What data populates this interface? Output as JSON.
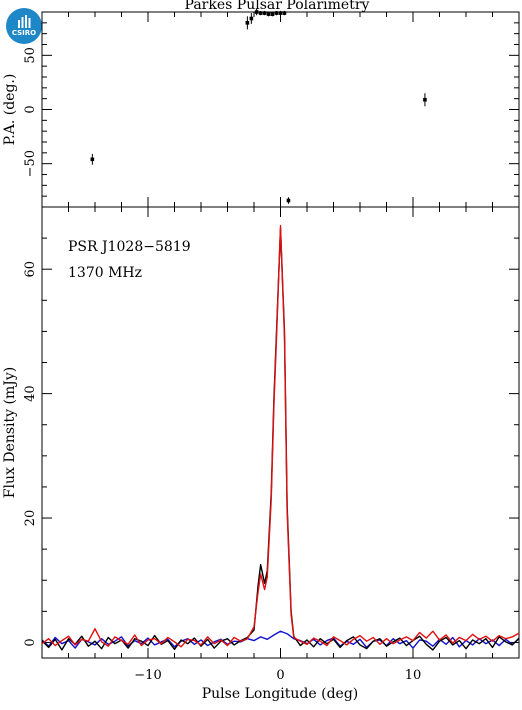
{
  "logo": {
    "text": "CSIRO"
  },
  "chart_data": [
    {
      "type": "scatter",
      "title": "Parkes Pulsar Polarimetry",
      "xlabel": "",
      "ylabel": "P.A. (deg.)",
      "xlim": [
        -18,
        18
      ],
      "ylim": [
        -90,
        90
      ],
      "xticks": [
        -10,
        0,
        10
      ],
      "yticks": [
        -50,
        0,
        50
      ],
      "series": [
        {
          "x": [
            -14.2,
            -2.5,
            -2.2,
            -1.8,
            -1.5,
            -1.2,
            -0.9,
            -0.6,
            -0.3,
            0.0,
            0.3,
            0.6,
            10.9
          ],
          "y": [
            -46,
            80,
            84,
            90,
            89,
            89,
            88,
            88,
            89,
            89,
            89,
            -84,
            9
          ],
          "yerr": [
            5,
            6,
            5,
            3,
            2,
            2,
            2,
            2,
            2,
            2,
            2,
            3,
            6
          ]
        }
      ]
    },
    {
      "type": "line",
      "title": "",
      "annotations": [
        "PSR J1028−5819",
        "1370 MHz"
      ],
      "xlabel": "Pulse Longitude (deg)",
      "ylabel": "Flux Density (mJy)",
      "xlim": [
        -18,
        18
      ],
      "ylim": [
        -2.5,
        70
      ],
      "xticks": [
        -10,
        0,
        10
      ],
      "yticks": [
        0,
        20,
        40,
        60
      ],
      "series": [
        {
          "color": "#000000",
          "x": [
            -18,
            -17.5,
            -17,
            -16.5,
            -16,
            -15.5,
            -15,
            -14.5,
            -14,
            -13.5,
            -13,
            -12.5,
            -12,
            -11.5,
            -11,
            -10.5,
            -10,
            -9.5,
            -9,
            -8.5,
            -8,
            -7.5,
            -7,
            -6.5,
            -6,
            -5.5,
            -5,
            -4.5,
            -4,
            -3.5,
            -3,
            -2.5,
            -2,
            -1.7,
            -1.5,
            -1.2,
            -1.0,
            -0.7,
            -0.5,
            -0.3,
            0.0,
            0.3,
            0.5,
            0.8,
            1.0,
            1.5,
            2,
            2.5,
            3,
            3.5,
            4,
            4.5,
            5,
            5.5,
            6,
            6.5,
            7,
            7.5,
            8,
            8.5,
            9,
            9.5,
            10,
            10.5,
            11,
            11.5,
            12,
            12.5,
            13,
            13.5,
            14,
            14.5,
            15,
            15.5,
            16,
            16.5,
            17,
            17.5,
            18
          ],
          "y": [
            0.3,
            -0.8,
            0.5,
            -1.2,
            0.6,
            -0.3,
            1.0,
            -0.6,
            0.2,
            -1.0,
            0.8,
            -0.2,
            0.4,
            -0.9,
            0.6,
            0.2,
            -0.5,
            1.1,
            -0.3,
            0.3,
            -1.1,
            0.4,
            -0.2,
            0.7,
            -0.6,
            0.5,
            -0.9,
            0.2,
            0.6,
            -0.4,
            0.3,
            0.8,
            2.0,
            9.0,
            12.5,
            9.5,
            11.5,
            24.0,
            39.0,
            50.0,
            66.5,
            50.0,
            22.0,
            5.0,
            1.0,
            -0.5,
            0.4,
            -0.7,
            0.6,
            -0.2,
            0.5,
            -0.8,
            0.3,
            0.9,
            -0.4,
            -1.0,
            0.2,
            0.6,
            -0.6,
            0.1,
            0.7,
            -0.5,
            0.3,
            1.0,
            -0.3,
            -1.2,
            0.2,
            0.8,
            -0.4,
            0.3,
            -1.0,
            0.4,
            -0.2,
            0.6,
            -0.8,
            0.9,
            0.1,
            -0.4,
            0.7
          ]
        },
        {
          "color": "#e01010",
          "x": [
            -18,
            -17.5,
            -17,
            -16.5,
            -16,
            -15.5,
            -15,
            -14.5,
            -14,
            -13.5,
            -13,
            -12.5,
            -12,
            -11.5,
            -11,
            -10.5,
            -10,
            -9.5,
            -9,
            -8.5,
            -8,
            -7.5,
            -7,
            -6.5,
            -6,
            -5.5,
            -5,
            -4.5,
            -4,
            -3.5,
            -3,
            -2.5,
            -2,
            -1.7,
            -1.5,
            -1.2,
            -1.0,
            -0.7,
            -0.5,
            -0.3,
            0.0,
            0.3,
            0.5,
            0.8,
            1.0,
            1.5,
            2,
            2.5,
            3,
            3.5,
            4,
            4.5,
            5,
            5.5,
            6,
            6.5,
            7,
            7.5,
            8,
            8.5,
            9,
            9.5,
            10,
            10.5,
            11,
            11.5,
            12,
            12.5,
            13,
            13.5,
            14,
            14.5,
            15,
            15.5,
            16,
            16.5,
            17,
            17.5,
            18
          ],
          "y": [
            -0.2,
            0.6,
            -0.5,
            0.3,
            1.0,
            -0.4,
            0.5,
            0.2,
            2.2,
            0.1,
            -0.6,
            0.9,
            0.3,
            -0.3,
            1.2,
            -0.5,
            0.4,
            0.6,
            -0.2,
            0.8,
            0.1,
            -0.7,
            0.5,
            0.3,
            -0.4,
            0.9,
            -0.2,
            0.4,
            -0.5,
            0.8,
            0.2,
            0.6,
            2.5,
            8.0,
            11.0,
            8.5,
            10.5,
            23.0,
            38.0,
            49.0,
            67.0,
            49.0,
            21.0,
            4.5,
            0.8,
            0.2,
            -0.3,
            0.7,
            0.2,
            -0.5,
            0.9,
            0.3,
            -0.4,
            0.5,
            1.1,
            0.2,
            0.8,
            -0.3,
            0.6,
            -0.2,
            0.4,
            0.9,
            0.3,
            1.6,
            0.7,
            1.8,
            0.4,
            1.2,
            -0.1,
            0.8,
            0.3,
            1.3,
            0.5,
            1.0,
            0.2,
            1.1,
            0.6,
            0.9,
            1.5
          ]
        },
        {
          "color": "#1010d0",
          "x": [
            -18,
            -17.5,
            -17,
            -16.5,
            -16,
            -15.5,
            -15,
            -14.5,
            -14,
            -13.5,
            -13,
            -12.5,
            -12,
            -11.5,
            -11,
            -10.5,
            -10,
            -9.5,
            -9,
            -8.5,
            -8,
            -7.5,
            -7,
            -6.5,
            -6,
            -5.5,
            -5,
            -4.5,
            -4,
            -3.5,
            -3,
            -2.5,
            -2,
            -1.5,
            -1,
            -0.5,
            0,
            0.5,
            1,
            1.5,
            2,
            2.5,
            3,
            3.5,
            4,
            4.5,
            5,
            5.5,
            6,
            6.5,
            7,
            7.5,
            8,
            8.5,
            9,
            9.5,
            10,
            10.5,
            11,
            11.5,
            12,
            12.5,
            13,
            13.5,
            14,
            14.5,
            15,
            15.5,
            16,
            16.5,
            17,
            17.5,
            18
          ],
          "y": [
            0.4,
            -0.6,
            0.8,
            -0.2,
            0.3,
            -0.9,
            0.5,
            0.1,
            -0.4,
            0.6,
            -0.3,
            0.2,
            0.9,
            -0.6,
            0.3,
            -0.2,
            0.7,
            -0.4,
            0.1,
            0.5,
            -0.7,
            0.2,
            0.6,
            -0.3,
            0.4,
            -0.5,
            0.1,
            0.5,
            -0.3,
            0.2,
            0.1,
            0.6,
            0.3,
            0.9,
            0.5,
            1.2,
            1.8,
            1.4,
            0.6,
            0.3,
            -0.2,
            0.5,
            -0.4,
            0.3,
            0.7,
            -0.6,
            0.2,
            -0.3,
            0.5,
            -0.8,
            0.2,
            0.4,
            -0.5,
            0.6,
            -0.2,
            0.3,
            -0.9,
            0.4,
            0.2,
            -0.6,
            0.5,
            -0.3,
            0.8,
            -0.7,
            0.3,
            -0.4,
            0.6,
            -0.2,
            0.4,
            -0.5,
            0.5,
            -0.3,
            0.6
          ]
        }
      ]
    }
  ]
}
